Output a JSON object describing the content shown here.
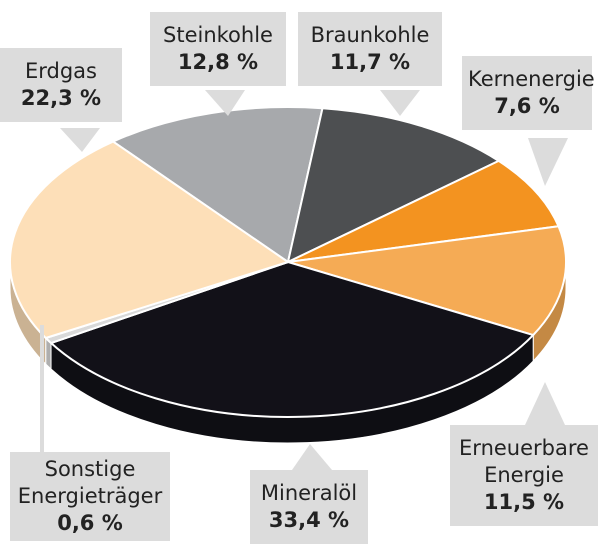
{
  "chart_data": {
    "type": "pie3d",
    "categories": [
      "Steinkohle",
      "Braunkohle",
      "Kernenergie",
      "Erneuerbare Energie",
      "Mineralöl",
      "Sonstige Energieträger",
      "Erdgas"
    ],
    "values": [
      12.8,
      11.7,
      7.6,
      11.5,
      33.4,
      0.6,
      22.3
    ],
    "value_labels": [
      "12,8 %",
      "11,7 %",
      "7,6 %",
      "11,5 %",
      "33,4 %",
      "0,6 %",
      "22,3 %"
    ],
    "colors": [
      "#a7a9ac",
      "#4d4f51",
      "#f39320",
      "#f5ab55",
      "#121118",
      "#d9d9d9",
      "#fddfb8"
    ]
  }
}
